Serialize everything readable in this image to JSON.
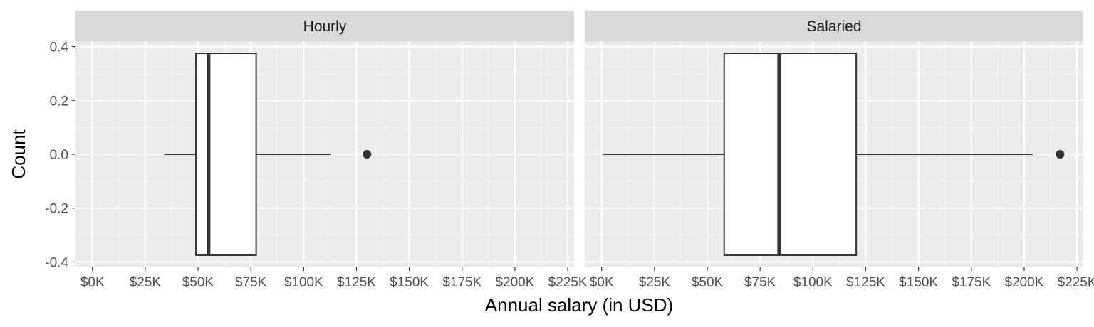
{
  "chart_data": {
    "type": "boxplot",
    "xlabel": "Annual salary (in USD)",
    "ylabel": "Count",
    "xlim": [
      -8000,
      228000
    ],
    "ylim": [
      -0.42,
      0.42
    ],
    "x_ticks": [
      0,
      25000,
      50000,
      75000,
      100000,
      125000,
      150000,
      175000,
      200000,
      225000
    ],
    "x_tick_labels": [
      "$0K",
      "$25K",
      "$50K",
      "$75K",
      "$100K",
      "$125K",
      "$150K",
      "$175K",
      "$200K",
      "$225K"
    ],
    "y_ticks": [
      0.4,
      0.2,
      0.0,
      -0.2,
      -0.4
    ],
    "y_tick_labels": [
      "0.4",
      "0.2",
      "0.0",
      "-0.2",
      "-0.4"
    ],
    "grid": true,
    "box_halfwidth": 0.375,
    "panels": [
      {
        "name": "Hourly",
        "min": 34000,
        "q1": 49000,
        "median": 55000,
        "q3": 77500,
        "max": 113000,
        "outliers": [
          130000
        ]
      },
      {
        "name": "Salaried",
        "min": 500,
        "q1": 58000,
        "median": 84000,
        "q3": 120500,
        "max": 204000,
        "outliers": [
          217000
        ]
      }
    ]
  }
}
